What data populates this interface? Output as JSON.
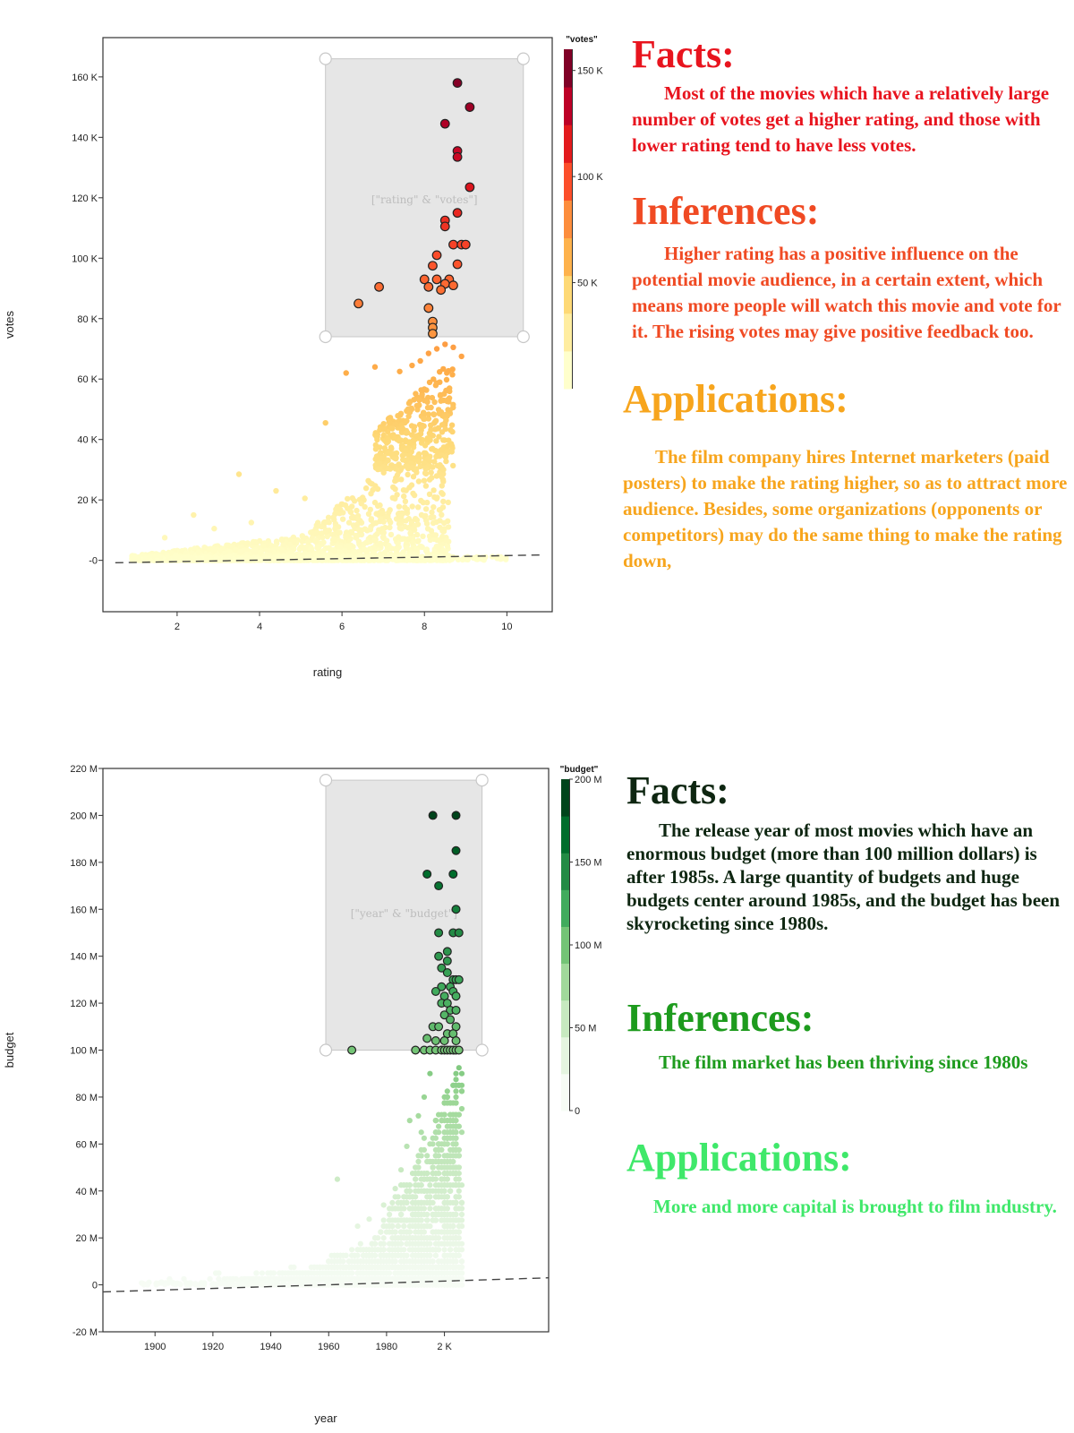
{
  "chart_data": [
    {
      "type": "scatter",
      "xlabel": "rating",
      "ylabel": "votes",
      "xlim": [
        0.2,
        11.1
      ],
      "ylim": [
        -17000,
        173000
      ],
      "xticks": [
        2,
        4,
        6,
        8,
        10
      ],
      "xtick_labels": [
        "2",
        "4",
        "6",
        "8",
        "10"
      ],
      "yticks": [
        0,
        20000,
        40000,
        60000,
        80000,
        100000,
        120000,
        140000,
        160000
      ],
      "ytick_labels": [
        "-0",
        "20 K",
        "40 K",
        "60 K",
        "80 K",
        "100 K",
        "120 K",
        "140 K",
        "160 K"
      ],
      "brush_label": "[\"rating\" & \"votes\"]",
      "brush": {
        "x": [
          5.6,
          10.4
        ],
        "y": [
          74000,
          166000
        ]
      },
      "trend_line": {
        "x": [
          0.5,
          10.9
        ],
        "y": [
          -800,
          1800
        ]
      },
      "legend": {
        "title": "\"votes\"",
        "placement": "right",
        "range": [
          0,
          160000
        ],
        "ticks": [
          50000,
          100000,
          150000
        ],
        "tick_labels": [
          "50 K",
          "100 K",
          "150 K"
        ],
        "colors": [
          "#ffffcc",
          "#ffeda0",
          "#fed976",
          "#feb24c",
          "#fd8d3c",
          "#fc4e2a",
          "#e31a1c",
          "#bd0026",
          "#800026"
        ]
      },
      "selected_points": [
        [
          8.8,
          158000
        ],
        [
          9.1,
          150000
        ],
        [
          8.5,
          144500
        ],
        [
          8.8,
          135500
        ],
        [
          8.8,
          133500
        ],
        [
          9.1,
          123500
        ],
        [
          8.8,
          115000
        ],
        [
          8.5,
          112500
        ],
        [
          8.5,
          110500
        ],
        [
          8.7,
          104500
        ],
        [
          8.9,
          104500
        ],
        [
          9.0,
          104500
        ],
        [
          8.3,
          101000
        ],
        [
          8.2,
          97500
        ],
        [
          8.8,
          98000
        ],
        [
          6.4,
          85000
        ],
        [
          6.9,
          90500
        ],
        [
          8.0,
          93000
        ],
        [
          8.3,
          93000
        ],
        [
          8.6,
          93000
        ],
        [
          8.1,
          90500
        ],
        [
          8.5,
          91500
        ],
        [
          8.7,
          91000
        ],
        [
          8.4,
          89500
        ],
        [
          8.1,
          83500
        ],
        [
          8.2,
          79000
        ],
        [
          8.2,
          77000
        ],
        [
          8.2,
          75000
        ]
      ],
      "outliers": [
        [
          6.1,
          62000
        ],
        [
          6.8,
          64000
        ],
        [
          7.4,
          62500
        ],
        [
          7.7,
          64500
        ],
        [
          7.9,
          66000
        ],
        [
          8.1,
          68500
        ],
        [
          8.3,
          70000
        ],
        [
          8.5,
          71500
        ],
        [
          8.7,
          70500
        ],
        [
          8.9,
          67500
        ],
        [
          5.6,
          45500
        ],
        [
          3.5,
          28500
        ],
        [
          4.4,
          23000
        ],
        [
          2.4,
          15000
        ],
        [
          1.7,
          7500
        ],
        [
          2.9,
          10500
        ],
        [
          3.8,
          12500
        ],
        [
          5.1,
          20500
        ]
      ]
    },
    {
      "type": "scatter",
      "xlabel": "year",
      "ylabel": "budget",
      "xlim": [
        1882,
        2036
      ],
      "ylim": [
        -20000000,
        220000000
      ],
      "xticks": [
        1900,
        1920,
        1940,
        1960,
        1980,
        2000
      ],
      "xtick_labels": [
        "1900",
        "1920",
        "1940",
        "1960",
        "1980",
        "2 K"
      ],
      "yticks": [
        -20000000,
        0,
        20000000,
        40000000,
        60000000,
        80000000,
        100000000,
        120000000,
        140000000,
        160000000,
        180000000,
        200000000,
        220000000
      ],
      "ytick_labels": [
        "-20 M",
        "0",
        "20 M",
        "40 M",
        "60 M",
        "80 M",
        "100 M",
        "120 M",
        "140 M",
        "160 M",
        "180 M",
        "200 M",
        "220 M"
      ],
      "brush_label": "[\"year\" & \"budget\"]",
      "brush": {
        "x": [
          1959,
          2013
        ],
        "y": [
          100000000,
          215000000
        ]
      },
      "trend_line": {
        "x": [
          1882,
          2036
        ],
        "y": [
          -3000000,
          3000000
        ]
      },
      "legend": {
        "title": "\"budget\"",
        "placement": "right",
        "range": [
          0,
          200000000
        ],
        "ticks": [
          0,
          50000000,
          100000000,
          150000000,
          200000000
        ],
        "tick_labels": [
          "0",
          "50 M",
          "100 M",
          "150 M",
          "200 M"
        ],
        "colors": [
          "#f7fcf5",
          "#e5f5e0",
          "#c7e9c0",
          "#a1d99b",
          "#74c476",
          "#41ab5d",
          "#238b45",
          "#006d2c",
          "#00441b"
        ]
      },
      "selected_points": [
        [
          1996,
          200000000
        ],
        [
          2004,
          200000000
        ],
        [
          2004,
          185000000
        ],
        [
          1994,
          175000000
        ],
        [
          2003,
          175000000
        ],
        [
          1998,
          170000000
        ],
        [
          2004,
          160000000
        ],
        [
          1998,
          150000000
        ],
        [
          2003,
          150000000
        ],
        [
          2005,
          150000000
        ],
        [
          2001,
          142000000
        ],
        [
          2001,
          138000000
        ],
        [
          1998,
          140000000
        ],
        [
          1999,
          135000000
        ],
        [
          2001,
          133000000
        ],
        [
          2003,
          130000000
        ],
        [
          2004,
          130000000
        ],
        [
          2005,
          130000000
        ],
        [
          1999,
          127000000
        ],
        [
          2002,
          127000000
        ],
        [
          1997,
          125000000
        ],
        [
          2000,
          123000000
        ],
        [
          2003,
          125000000
        ],
        [
          2004,
          123000000
        ],
        [
          1999,
          120000000
        ],
        [
          2001,
          120000000
        ],
        [
          2002,
          117000000
        ],
        [
          2004,
          117000000
        ],
        [
          2000,
          115000000
        ],
        [
          2002,
          113000000
        ],
        [
          2004,
          110000000
        ],
        [
          1996,
          110000000
        ],
        [
          1998,
          110000000
        ],
        [
          2001,
          107000000
        ],
        [
          2003,
          107000000
        ],
        [
          1994,
          105000000
        ],
        [
          1997,
          104000000
        ],
        [
          2000,
          104000000
        ],
        [
          2004,
          104000000
        ],
        [
          1968,
          100000000
        ],
        [
          1990,
          100000000
        ],
        [
          1993,
          100000000
        ],
        [
          1995,
          100000000
        ],
        [
          1997,
          100000000
        ],
        [
          1999,
          100000000
        ],
        [
          2000,
          100000000
        ],
        [
          2001,
          100000000
        ],
        [
          2002,
          100000000
        ],
        [
          2003,
          100000000
        ],
        [
          2004,
          100000000
        ],
        [
          2005,
          100000000
        ]
      ],
      "outliers": [
        [
          1963,
          45000000
        ],
        [
          1974,
          28000000
        ],
        [
          1970,
          25000000
        ],
        [
          1979,
          34000000
        ],
        [
          1983,
          41000000
        ],
        [
          1985,
          49000000
        ],
        [
          1987,
          59000000
        ],
        [
          1988,
          70000000
        ],
        [
          1991,
          72000000
        ],
        [
          1993,
          80000000
        ],
        [
          1992,
          65000000
        ],
        [
          1995,
          90000000
        ]
      ]
    }
  ],
  "panel1": {
    "facts_title": "Facts:",
    "facts_text": "Most of the movies which have a relatively large number of votes get a higher rating, and those with lower rating tend to have less votes.",
    "inferences_title": "Inferences:",
    "inferences_text": "Higher rating has a positive influence on the potential movie audience, in a certain extent, which means more people will watch this movie and vote for it. The rising votes may give positive feedback too.",
    "applications_title": "Applications:",
    "applications_text": "The film company hires Internet marketers (paid posters) to make the rating higher, so as to attract more audience. Besides, some organizations (opponents or competitors) may do the same thing to make the rating down,"
  },
  "panel2": {
    "facts_title": "Facts:",
    "facts_text": "The release year of most movies which have an enormous budget (more than 100 million dollars) is after 1985s. A large quantity of budgets and huge budgets center around 1985s, and the budget has been skyrocketing since 1980s.",
    "inferences_title": "Inferences:",
    "inferences_text": "The film market has been thriving since 1980s",
    "applications_title": "Applications:",
    "applications_text": "More and more capital is brought to film industry."
  }
}
